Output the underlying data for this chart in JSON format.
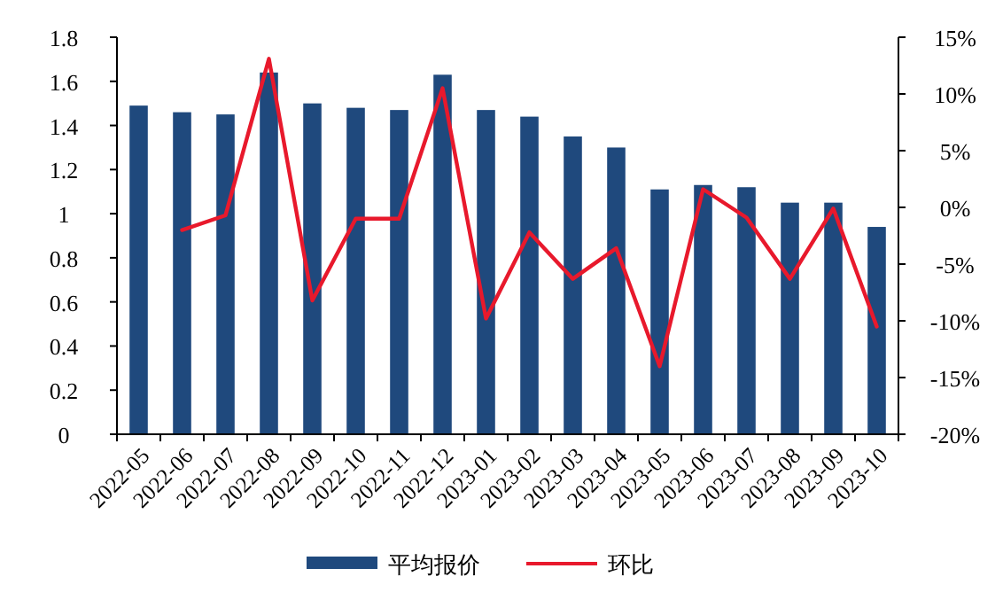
{
  "chart_data": {
    "type": "bar",
    "categories": [
      "2022-05",
      "2022-06",
      "2022-07",
      "2022-08",
      "2022-09",
      "2022-10",
      "2022-11",
      "2022-12",
      "2023-01",
      "2023-02",
      "2023-03",
      "2023-04",
      "2023-05",
      "2023-06",
      "2023-07",
      "2023-08",
      "2023-09",
      "2023-10"
    ],
    "series": [
      {
        "name": "平均报价",
        "color": "#1f497d",
        "values": [
          1.49,
          1.46,
          1.45,
          1.64,
          1.5,
          1.48,
          1.47,
          1.63,
          1.47,
          1.44,
          1.35,
          1.3,
          1.11,
          1.13,
          1.12,
          1.05,
          1.05,
          0.94
        ]
      },
      {
        "name": "环比",
        "type": "line",
        "axis": "y2",
        "color": "#e8192c",
        "values": [
          null,
          -2.0,
          -0.7,
          13.1,
          -8.2,
          -1.0,
          -1.0,
          10.5,
          -9.8,
          -2.2,
          -6.3,
          -3.6,
          -14.0,
          1.6,
          -0.9,
          -6.3,
          -0.1,
          -10.5
        ]
      }
    ],
    "ylim": [
      0,
      1.8
    ],
    "yticks": [
      0,
      {
        "value": 0.2,
        "label": "0.2"
      },
      {
        "value": 0.4,
        "label": "0.4"
      },
      {
        "value": 0.6,
        "label": "0.6"
      },
      {
        "value": 0.8,
        "label": "0.8"
      },
      1,
      {
        "value": 1.2,
        "label": "1.2"
      },
      {
        "value": 1.4,
        "label": "1.4"
      },
      {
        "value": 1.6,
        "label": "1.6"
      },
      {
        "value": 1.8,
        "label": "1.8"
      }
    ],
    "y2lim": [
      -20,
      15
    ],
    "y2ticks": [
      {
        "value": -20,
        "label": "-20%"
      },
      {
        "value": -15,
        "label": "-15%"
      },
      {
        "value": -10,
        "label": "-10%"
      },
      {
        "value": -5,
        "label": "-5%"
      },
      {
        "value": 0,
        "label": "0%"
      },
      {
        "value": 5,
        "label": "5%"
      },
      {
        "value": 10,
        "label": "10%"
      },
      {
        "value": 15,
        "label": "15%"
      }
    ],
    "grid": false,
    "legend": "bottom"
  }
}
